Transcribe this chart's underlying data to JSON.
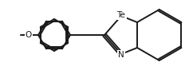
{
  "background_color": "#ffffff",
  "line_color": "#1a1a1a",
  "line_width": 1.4,
  "figsize": [
    2.37,
    0.88
  ],
  "dpi": 100,
  "Te_label": "Te",
  "N_label": "N",
  "O_label": "O",
  "Te_fontsize": 7.5,
  "N_fontsize": 7.5,
  "O_fontsize": 7.5
}
